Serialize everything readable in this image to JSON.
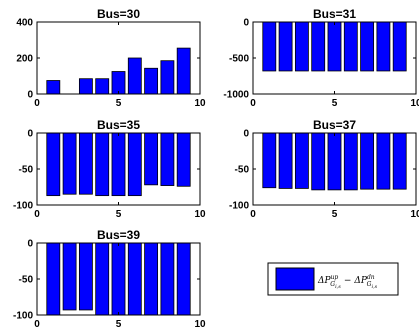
{
  "figure": {
    "background": "#ffffff",
    "bar_color": "#0000ff",
    "edge_color": "#000000"
  },
  "legend": {
    "label": "ΔP^{up}_{G_{i,s}} − ΔP^{dn}_{G_{i,s}}",
    "main": "ΔP",
    "sup1": "up",
    "sub1": "G",
    "subsub1": "i,s",
    "minus": "−",
    "sup2": "dn",
    "sub2": "G",
    "subsub2": "i,s"
  },
  "chart_data": [
    {
      "type": "bar",
      "title": "Bus=30",
      "x": [
        1,
        2,
        3,
        4,
        5,
        6,
        7,
        8,
        9
      ],
      "values": [
        75,
        0,
        85,
        85,
        125,
        200,
        143,
        185,
        255
      ],
      "xlim": [
        0,
        10
      ],
      "ylim": [
        0,
        400
      ],
      "xticks": [
        "0",
        "5",
        "10"
      ],
      "yticks": [
        "0",
        "200",
        "400"
      ]
    },
    {
      "type": "bar",
      "title": "Bus=31",
      "x": [
        1,
        2,
        3,
        4,
        5,
        6,
        7,
        8,
        9
      ],
      "values": [
        -680,
        -680,
        -680,
        -680,
        -680,
        -680,
        -680,
        -680,
        -680
      ],
      "xlim": [
        0,
        10
      ],
      "ylim": [
        -1000,
        0
      ],
      "xticks": [
        "0",
        "5",
        "10"
      ],
      "yticks": [
        "-1000",
        "-500",
        "0"
      ]
    },
    {
      "type": "bar",
      "title": "Bus=35",
      "x": [
        1,
        2,
        3,
        4,
        5,
        6,
        7,
        8,
        9
      ],
      "values": [
        -87,
        -85,
        -85,
        -87,
        -87,
        -87,
        -72,
        -73,
        -74
      ],
      "xlim": [
        0,
        10
      ],
      "ylim": [
        -100,
        0
      ],
      "xticks": [
        "0",
        "5",
        "10"
      ],
      "yticks": [
        "-100",
        "-50",
        "0"
      ]
    },
    {
      "type": "bar",
      "title": "Bus=37",
      "x": [
        1,
        2,
        3,
        4,
        5,
        6,
        7,
        8,
        9
      ],
      "values": [
        -76,
        -77,
        -77,
        -79,
        -79,
        -79,
        -78,
        -78,
        -78
      ],
      "xlim": [
        0,
        10
      ],
      "ylim": [
        -100,
        0
      ],
      "xticks": [
        "0",
        "5",
        "10"
      ],
      "yticks": [
        "-100",
        "-50",
        "0"
      ]
    },
    {
      "type": "bar",
      "title": "Bus=39",
      "x": [
        1,
        2,
        3,
        4,
        5,
        6,
        7,
        8,
        9
      ],
      "values": [
        -100,
        -93,
        -93,
        -100,
        -100,
        -100,
        -100,
        -100,
        -100
      ],
      "xlim": [
        0,
        10
      ],
      "ylim": [
        -100,
        0
      ],
      "xticks": [
        "0",
        "5",
        "10"
      ],
      "yticks": [
        "-100",
        "-50",
        "0"
      ]
    }
  ]
}
